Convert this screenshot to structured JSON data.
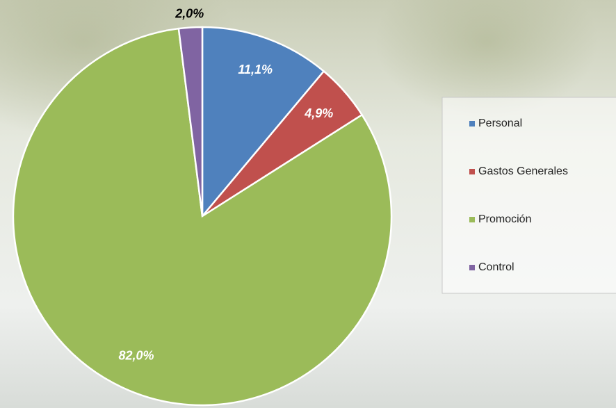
{
  "chart_data": {
    "type": "pie",
    "categories": [
      "Personal",
      "Gastos Generales",
      "Promoción",
      "Control"
    ],
    "values": [
      11.1,
      4.9,
      82.0,
      2.0
    ],
    "value_labels": [
      "11,1%",
      "4,9%",
      "82,0%",
      "2,0%"
    ],
    "colors": [
      "#4f81bd",
      "#c0504d",
      "#9bbb59",
      "#8064a2"
    ],
    "legend": "right"
  }
}
